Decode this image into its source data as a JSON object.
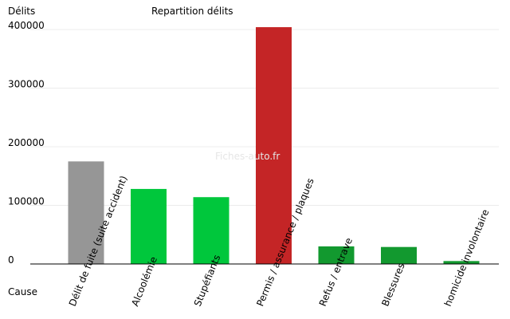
{
  "chart_data": {
    "type": "bar",
    "title": "Repartition délits",
    "ylabel": "Délits",
    "xlabel": "Cause",
    "watermark": "Fiches-auto.fr",
    "ylim": [
      0,
      400000
    ],
    "yticks": [
      0,
      100000,
      200000,
      300000,
      400000
    ],
    "ytick_labels": [
      "0",
      "100000",
      "200000",
      "300000",
      "400000"
    ],
    "grid": true,
    "categories": [
      "Délit de fuite (suite accident)",
      "Alcoolémie",
      "Stupéfiants",
      "Permis / assurance / plaques",
      "Refus / entrave",
      "Blessures",
      "homicide involontaire"
    ],
    "values": [
      175000,
      128000,
      114000,
      404000,
      30000,
      29000,
      5000
    ],
    "colors": [
      "#969696",
      "#00c73c",
      "#00c73c",
      "#c42526",
      "#12992f",
      "#12992f",
      "#12992f"
    ]
  }
}
